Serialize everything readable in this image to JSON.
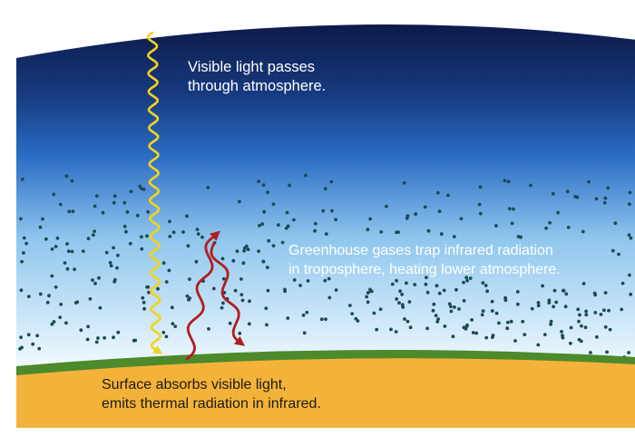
{
  "labels": {
    "visible_light": [
      "Visible light passes",
      "through atmosphere."
    ],
    "greenhouse": [
      "Greenhouse gases trap infrared radiation",
      "in troposphere, heating lower atmosphere."
    ],
    "surface": [
      "Surface absorbs visible light,",
      "emits thermal radiation in infrared."
    ]
  },
  "colors": {
    "sky_top": "#0d1a4a",
    "sky_mid": "#2a6cc4",
    "sky_low": "#8fc6ee",
    "sky_horizon": "#f4fbff",
    "ground_band": "#4c8a2c",
    "ground": "#f3b33a",
    "visible_light_ray": "#f3d21d",
    "infrared_ray": "#b01e1e",
    "gas_particles": "#1c4a52"
  },
  "icons": {
    "visible_light": "yellow-wavy-arrow",
    "infrared": "red-wavy-arrow",
    "gas_particle": "dot"
  }
}
